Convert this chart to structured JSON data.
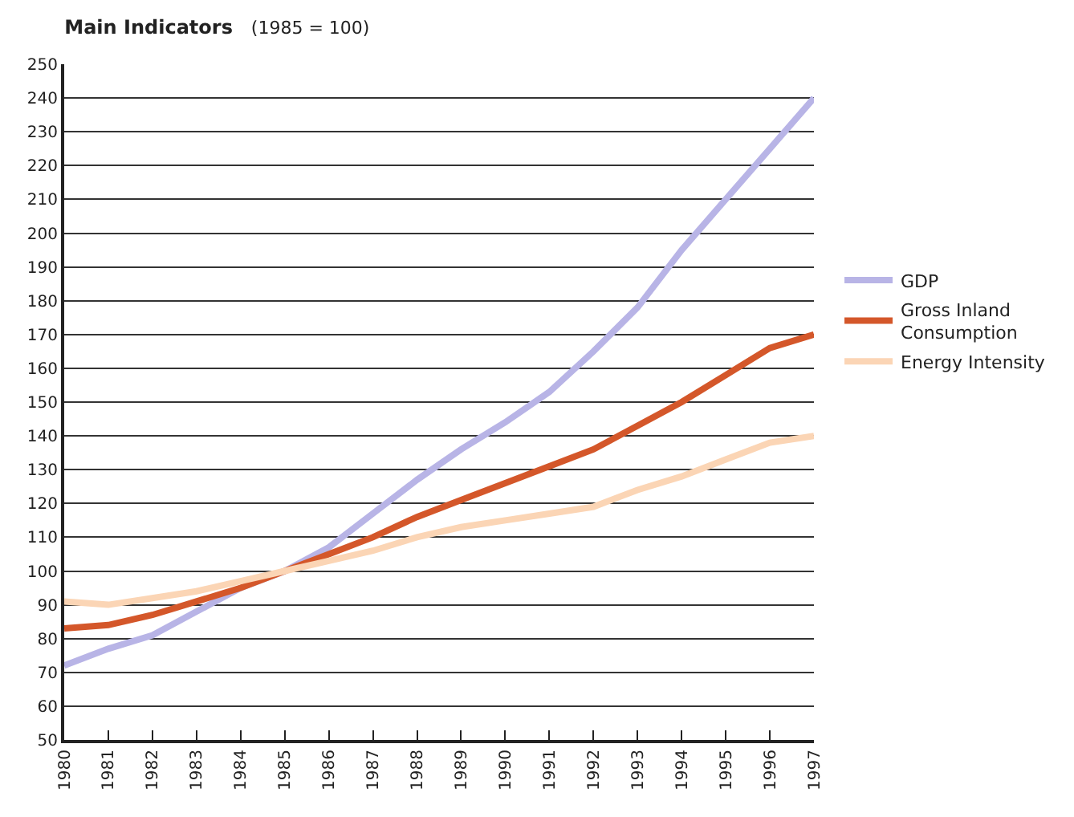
{
  "chart_data": {
    "type": "line",
    "title": "Main Indicators",
    "subtitle": "(1985 = 100)",
    "x": [
      1980,
      1981,
      1982,
      1983,
      1984,
      1985,
      1986,
      1987,
      1988,
      1989,
      1990,
      1991,
      1992,
      1993,
      1994,
      1995,
      1996,
      1997
    ],
    "xlim": [
      1980,
      1997
    ],
    "xticks": [
      1980,
      1981,
      1982,
      1983,
      1984,
      1985,
      1986,
      1987,
      1988,
      1989,
      1990,
      1991,
      1992,
      1993,
      1994,
      1995,
      1996,
      1997
    ],
    "ylim": [
      50,
      250
    ],
    "yticks": [
      50,
      60,
      70,
      80,
      90,
      100,
      110,
      120,
      130,
      140,
      150,
      160,
      170,
      180,
      190,
      200,
      210,
      220,
      230,
      240,
      250
    ],
    "grid": "y",
    "legend": "right",
    "marker": "none",
    "line_style": "solid",
    "series": [
      {
        "name": "GDP",
        "color": "#b8b4e6",
        "values": [
          72,
          77,
          81,
          88,
          95,
          100,
          107,
          117,
          127,
          136,
          144,
          153,
          165,
          178,
          195,
          210,
          225,
          240
        ]
      },
      {
        "name": "Gross Inland Consumption",
        "color": "#d4572a",
        "values": [
          83,
          84,
          87,
          91,
          95,
          100,
          105,
          110,
          116,
          121,
          126,
          131,
          136,
          143,
          150,
          158,
          166,
          170
        ]
      },
      {
        "name": "Energy Intensity",
        "color": "#fbd5b5",
        "values": [
          91,
          90,
          92,
          94,
          97,
          100,
          103,
          106,
          110,
          113,
          115,
          117,
          119,
          124,
          128,
          133,
          138,
          140
        ]
      }
    ]
  }
}
